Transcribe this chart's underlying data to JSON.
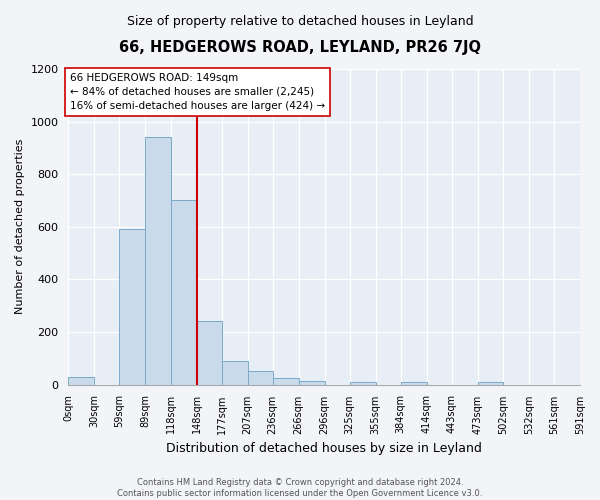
{
  "title": "66, HEDGEROWS ROAD, LEYLAND, PR26 7JQ",
  "subtitle": "Size of property relative to detached houses in Leyland",
  "xlabel": "Distribution of detached houses by size in Leyland",
  "ylabel": "Number of detached properties",
  "bar_color": "#c9daea",
  "bar_edge_color": "#7aaac8",
  "bins": [
    0,
    30,
    59,
    89,
    118,
    148,
    177,
    207,
    236,
    266,
    296,
    325,
    355,
    384,
    414,
    443,
    473,
    502,
    532,
    561,
    591
  ],
  "bin_labels": [
    "0sqm",
    "30sqm",
    "59sqm",
    "89sqm",
    "118sqm",
    "148sqm",
    "177sqm",
    "207sqm",
    "236sqm",
    "266sqm",
    "296sqm",
    "325sqm",
    "355sqm",
    "384sqm",
    "414sqm",
    "443sqm",
    "473sqm",
    "502sqm",
    "532sqm",
    "561sqm",
    "591sqm"
  ],
  "bar_heights": [
    30,
    0,
    590,
    940,
    700,
    240,
    90,
    50,
    25,
    15,
    0,
    10,
    0,
    10,
    0,
    0,
    10,
    0,
    0,
    0
  ],
  "property_size": 149,
  "vline_color": "#cc0000",
  "ylim": [
    0,
    1200
  ],
  "yticks": [
    0,
    200,
    400,
    600,
    800,
    1000,
    1200
  ],
  "annotation_text": "66 HEDGEROWS ROAD: 149sqm\n← 84% of detached houses are smaller (2,245)\n16% of semi-detached houses are larger (424) →",
  "annotation_box_color": "#ffffff",
  "annotation_box_edgecolor": "#cc0000",
  "footer_line1": "Contains HM Land Registry data © Crown copyright and database right 2024.",
  "footer_line2": "Contains public sector information licensed under the Open Government Licence v3.0.",
  "background_color": "#f2f4f8",
  "plot_background_color": "#e8eef5"
}
